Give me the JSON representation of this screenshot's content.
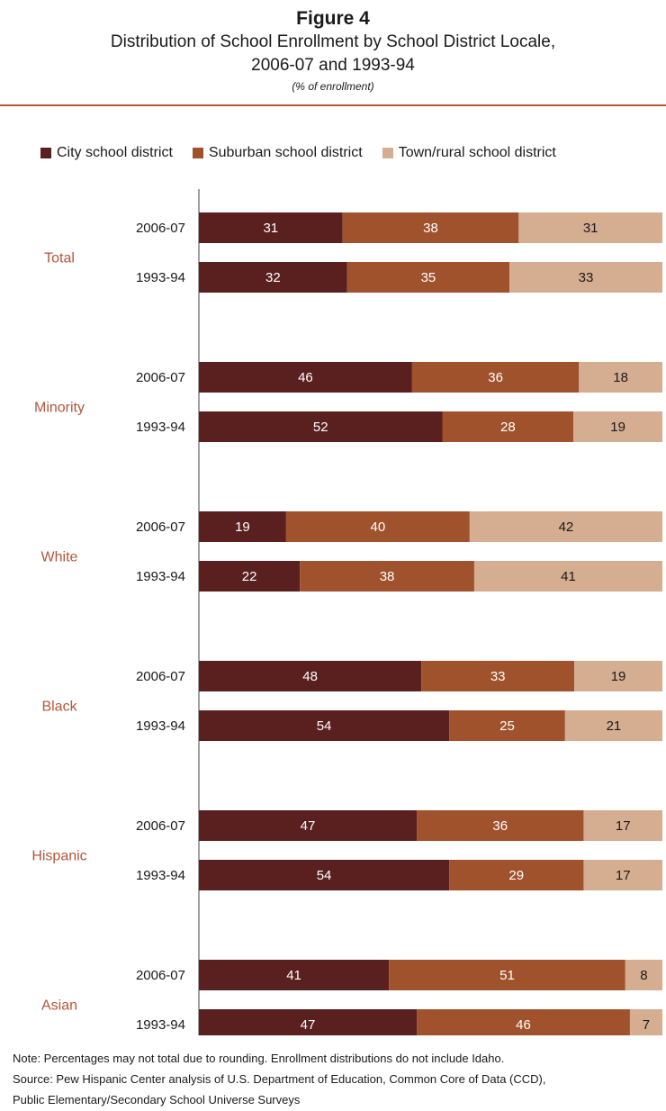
{
  "header": {
    "figure_label": "Figure 4",
    "title_line1": "Distribution of School Enrollment by School District Locale,",
    "title_line2": "2006-07 and 1993-94",
    "subtitle": "(% of enrollment)"
  },
  "legend": [
    {
      "name": "City school district",
      "color": "#5a1f1f"
    },
    {
      "name": "Suburban school district",
      "color": "#a0522d"
    },
    {
      "name": "Town/rural school district",
      "color": "#d5ad91"
    }
  ],
  "notes": {
    "note": "Note: Percentages may not total due to rounding. Enrollment distributions do not include Idaho.",
    "source_line1": "Source: Pew Hispanic Center analysis of U.S. Department of Education, Common Core of Data (CCD),",
    "source_line2": "Public Elementary/Secondary School Universe Surveys"
  },
  "chart_data": {
    "type": "bar",
    "orientation": "horizontal",
    "stacked": true,
    "title": "Distribution of School Enrollment by School District Locale, 2006-07 and 1993-94",
    "subtitle": "(% of enrollment)",
    "legend_position": "top",
    "grid": false,
    "series_names": [
      "City school district",
      "Suburban school district",
      "Town/rural school district"
    ],
    "groups": [
      {
        "name": "Total",
        "rows": [
          {
            "year": "2006-07",
            "values": [
              31,
              38,
              31
            ]
          },
          {
            "year": "1993-94",
            "values": [
              32,
              35,
              33
            ]
          }
        ]
      },
      {
        "name": "Minority",
        "rows": [
          {
            "year": "2006-07",
            "values": [
              46,
              36,
              18
            ]
          },
          {
            "year": "1993-94",
            "values": [
              52,
              28,
              19
            ]
          }
        ]
      },
      {
        "name": "White",
        "rows": [
          {
            "year": "2006-07",
            "values": [
              19,
              40,
              42
            ]
          },
          {
            "year": "1993-94",
            "values": [
              22,
              38,
              41
            ]
          }
        ]
      },
      {
        "name": "Black",
        "rows": [
          {
            "year": "2006-07",
            "values": [
              48,
              33,
              19
            ]
          },
          {
            "year": "1993-94",
            "values": [
              54,
              25,
              21
            ]
          }
        ]
      },
      {
        "name": "Hispanic",
        "rows": [
          {
            "year": "2006-07",
            "values": [
              47,
              36,
              17
            ]
          },
          {
            "year": "1993-94",
            "values": [
              54,
              29,
              17
            ]
          }
        ]
      },
      {
        "name": "Asian",
        "rows": [
          {
            "year": "2006-07",
            "values": [
              41,
              51,
              8
            ]
          },
          {
            "year": "1993-94",
            "values": [
              47,
              46,
              7
            ]
          }
        ]
      }
    ]
  }
}
